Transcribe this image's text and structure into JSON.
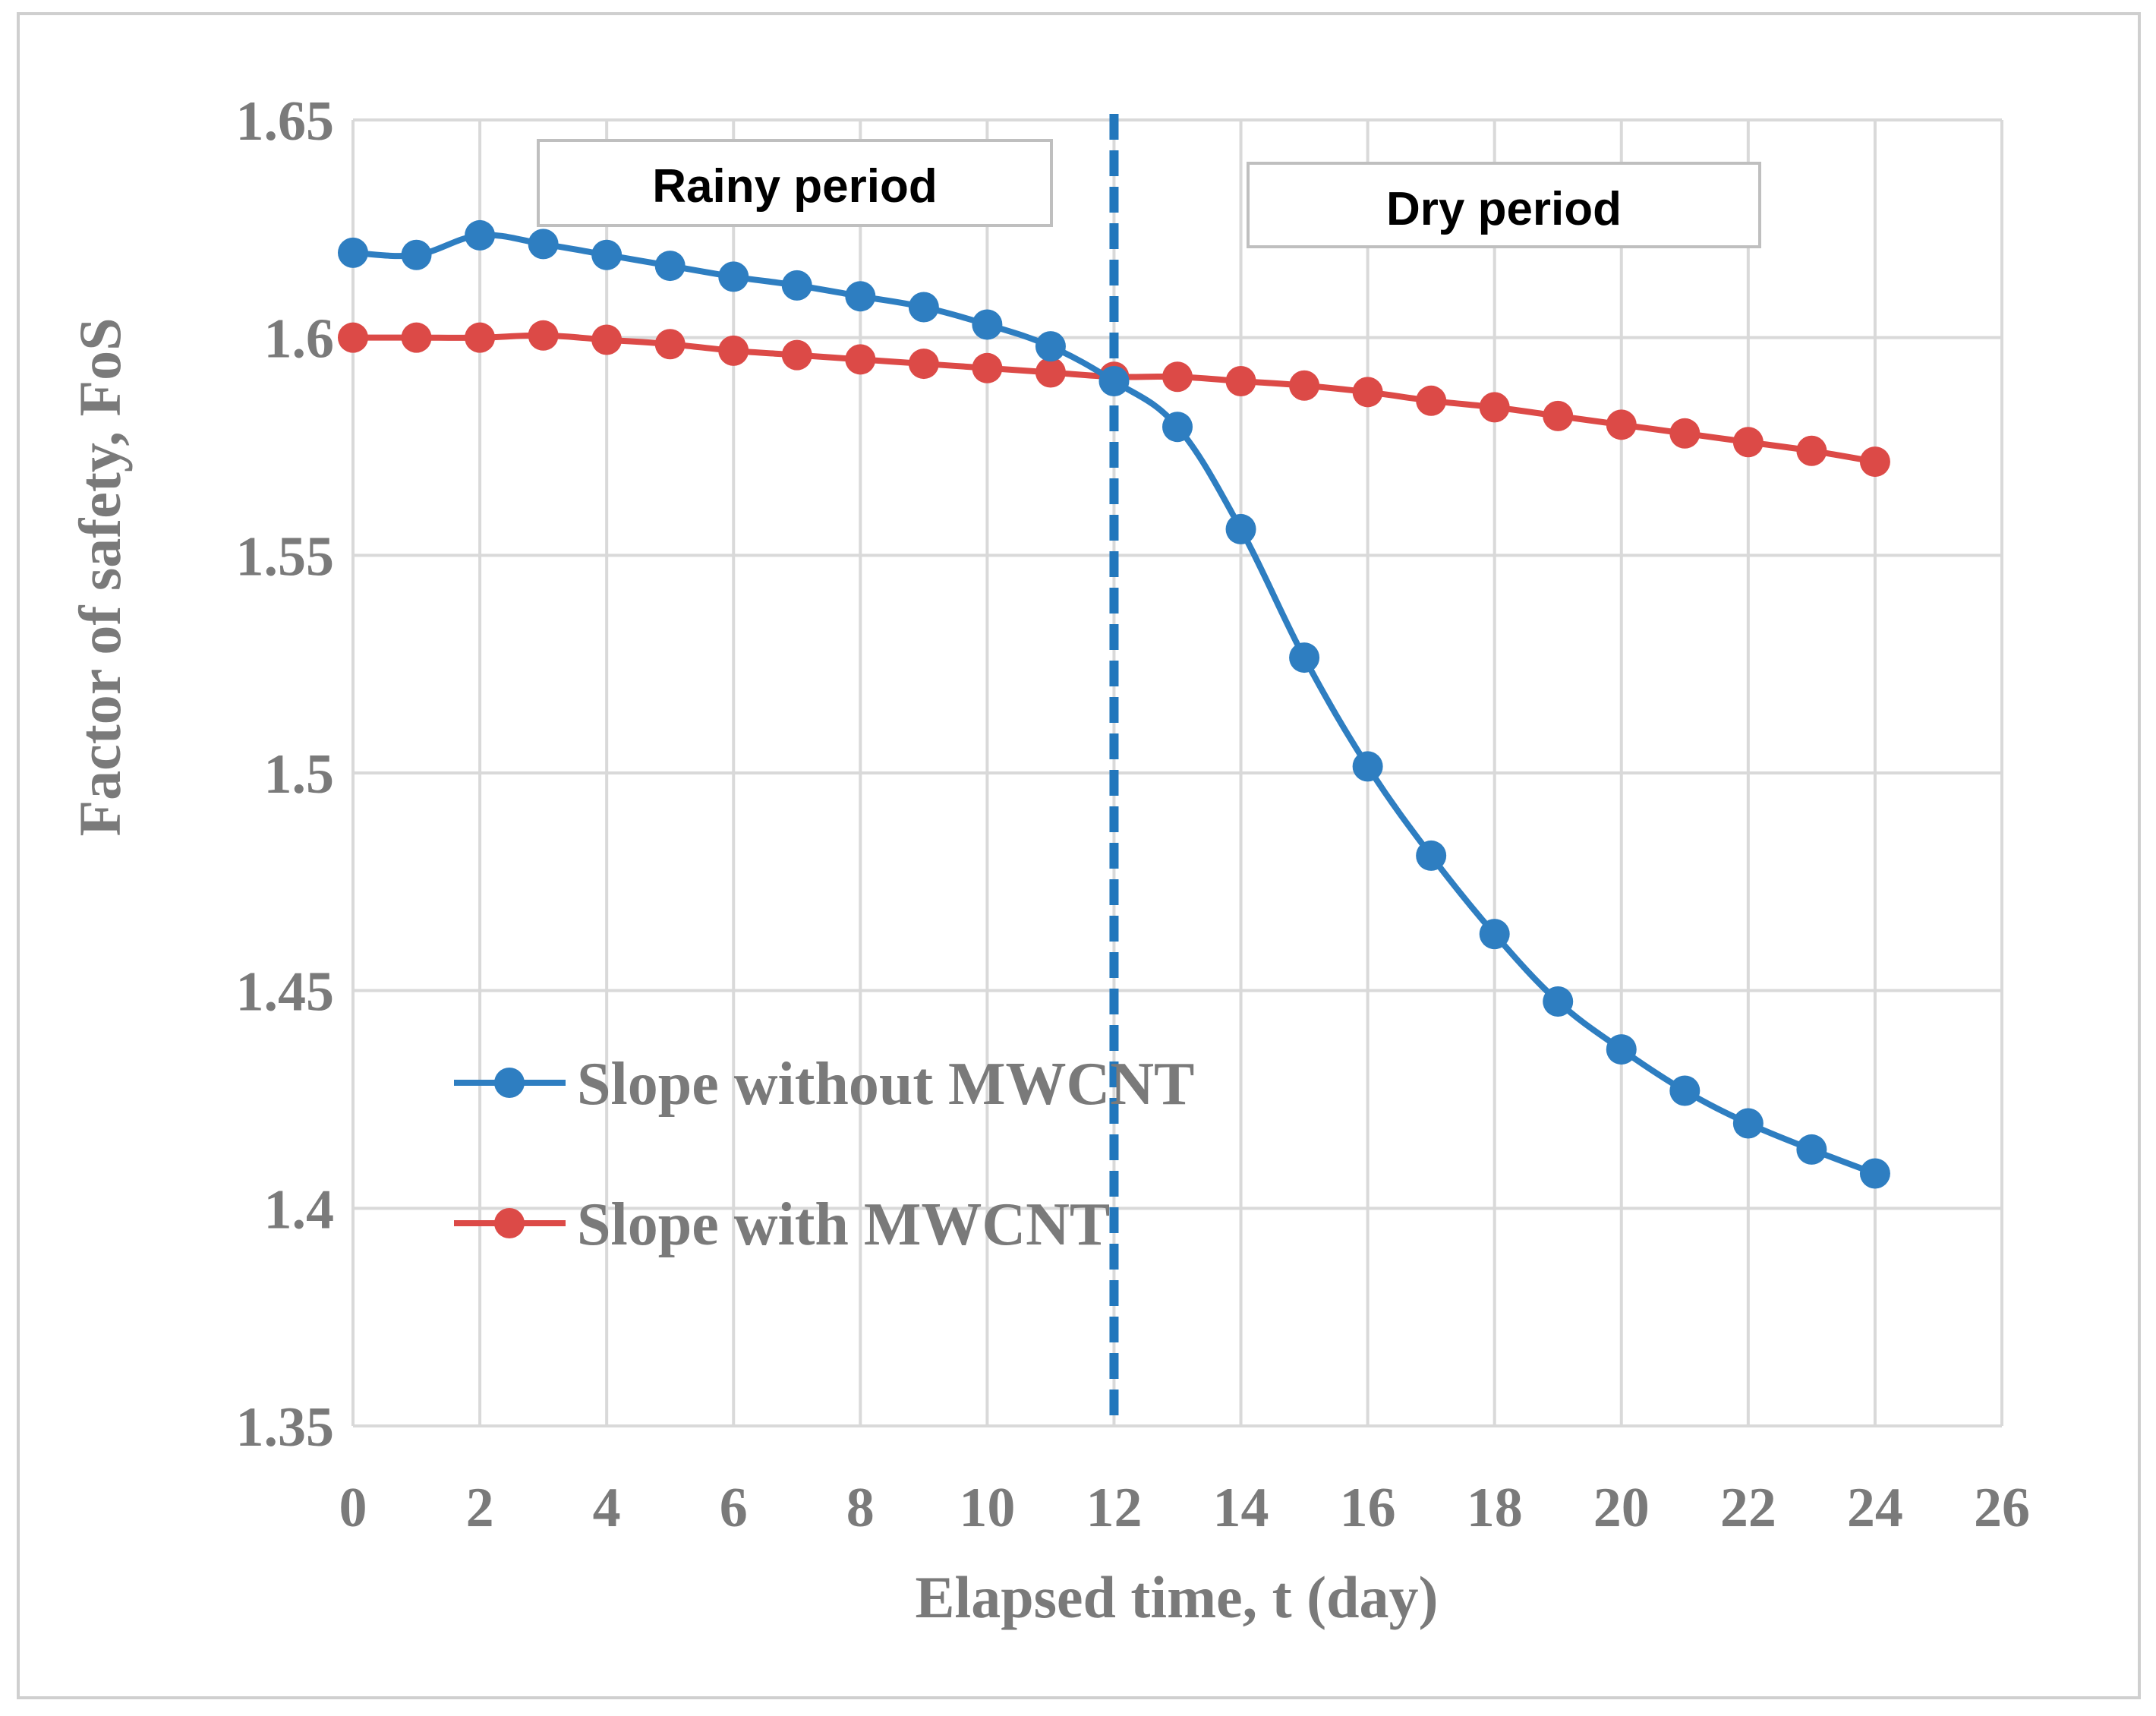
{
  "chart_data": {
    "type": "line",
    "title": "",
    "xlabel": "Elapsed time, t (day)",
    "ylabel": "Factor of safety, FoS",
    "xlim": [
      0,
      26
    ],
    "ylim": [
      1.35,
      1.65
    ],
    "xticks": [
      0,
      2,
      4,
      6,
      8,
      10,
      12,
      14,
      16,
      18,
      20,
      22,
      24,
      26
    ],
    "yticks": [
      1.35,
      1.4,
      1.45,
      1.5,
      1.55,
      1.6,
      1.65
    ],
    "grid": true,
    "legend_position": "lower-left",
    "x": [
      0,
      1,
      2,
      3,
      4,
      5,
      6,
      7,
      8,
      9,
      10,
      11,
      12,
      13,
      14,
      15,
      16,
      17,
      18,
      19,
      20,
      21,
      22,
      23,
      24
    ],
    "series": [
      {
        "name": "Slope without MWCNT",
        "color": "#2E7EC1",
        "values": [
          1.6195,
          1.619,
          1.6235,
          1.6215,
          1.619,
          1.6165,
          1.614,
          1.612,
          1.6095,
          1.607,
          1.603,
          1.598,
          1.59,
          1.5795,
          1.556,
          1.5265,
          1.5015,
          1.481,
          1.463,
          1.4475,
          1.4365,
          1.427,
          1.4195,
          1.4135,
          1.408
        ]
      },
      {
        "name": "Slope with MWCNT",
        "color": "#DC4A47",
        "values": [
          1.6,
          1.6,
          1.6,
          1.6005,
          1.5995,
          1.5985,
          1.597,
          1.596,
          1.595,
          1.594,
          1.593,
          1.592,
          1.591,
          1.591,
          1.59,
          1.589,
          1.5875,
          1.5855,
          1.584,
          1.582,
          1.58,
          1.578,
          1.576,
          1.574,
          1.5715
        ]
      }
    ],
    "vertical_line": {
      "x": 12,
      "color": "#2277BC",
      "style": "dashed"
    },
    "annotations": [
      {
        "text": "Rainy period"
      },
      {
        "text": "Dry period"
      }
    ]
  }
}
